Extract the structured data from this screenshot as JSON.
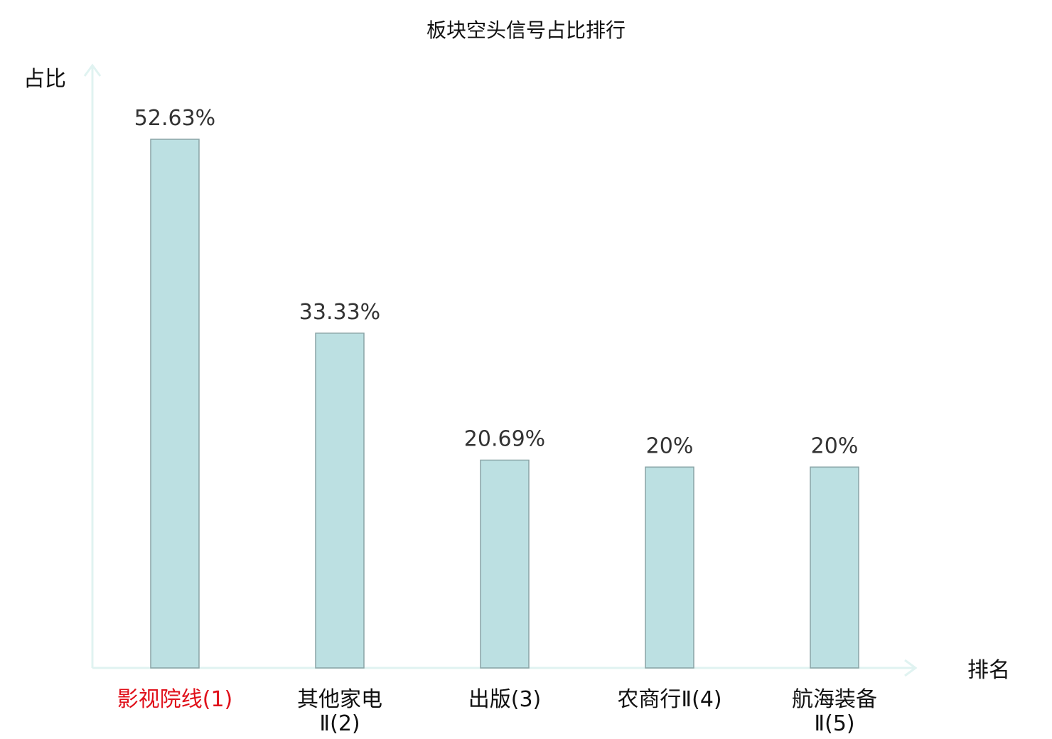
{
  "chart_data": {
    "type": "bar",
    "title": "板块空头信号占比排行",
    "xlabel": "排名",
    "ylabel": "占比",
    "categories": [
      [
        "影视院线(1)"
      ],
      [
        "其他家电",
        "Ⅱ(2)"
      ],
      [
        "出版(3)"
      ],
      [
        "农商行Ⅱ(4)"
      ],
      [
        "航海装备",
        "Ⅱ(5)"
      ]
    ],
    "values": [
      52.63,
      33.33,
      20.69,
      20,
      20
    ],
    "value_labels": [
      "52.63%",
      "33.33%",
      "20.69%",
      "20%",
      "20%"
    ],
    "highlight_index": 0,
    "grid": false,
    "colors": {
      "bar_fill": "#bce0e2",
      "bar_stroke": "#8aa4a6",
      "axis": "#e0f3f1",
      "highlight_text": "#e0101a"
    }
  }
}
